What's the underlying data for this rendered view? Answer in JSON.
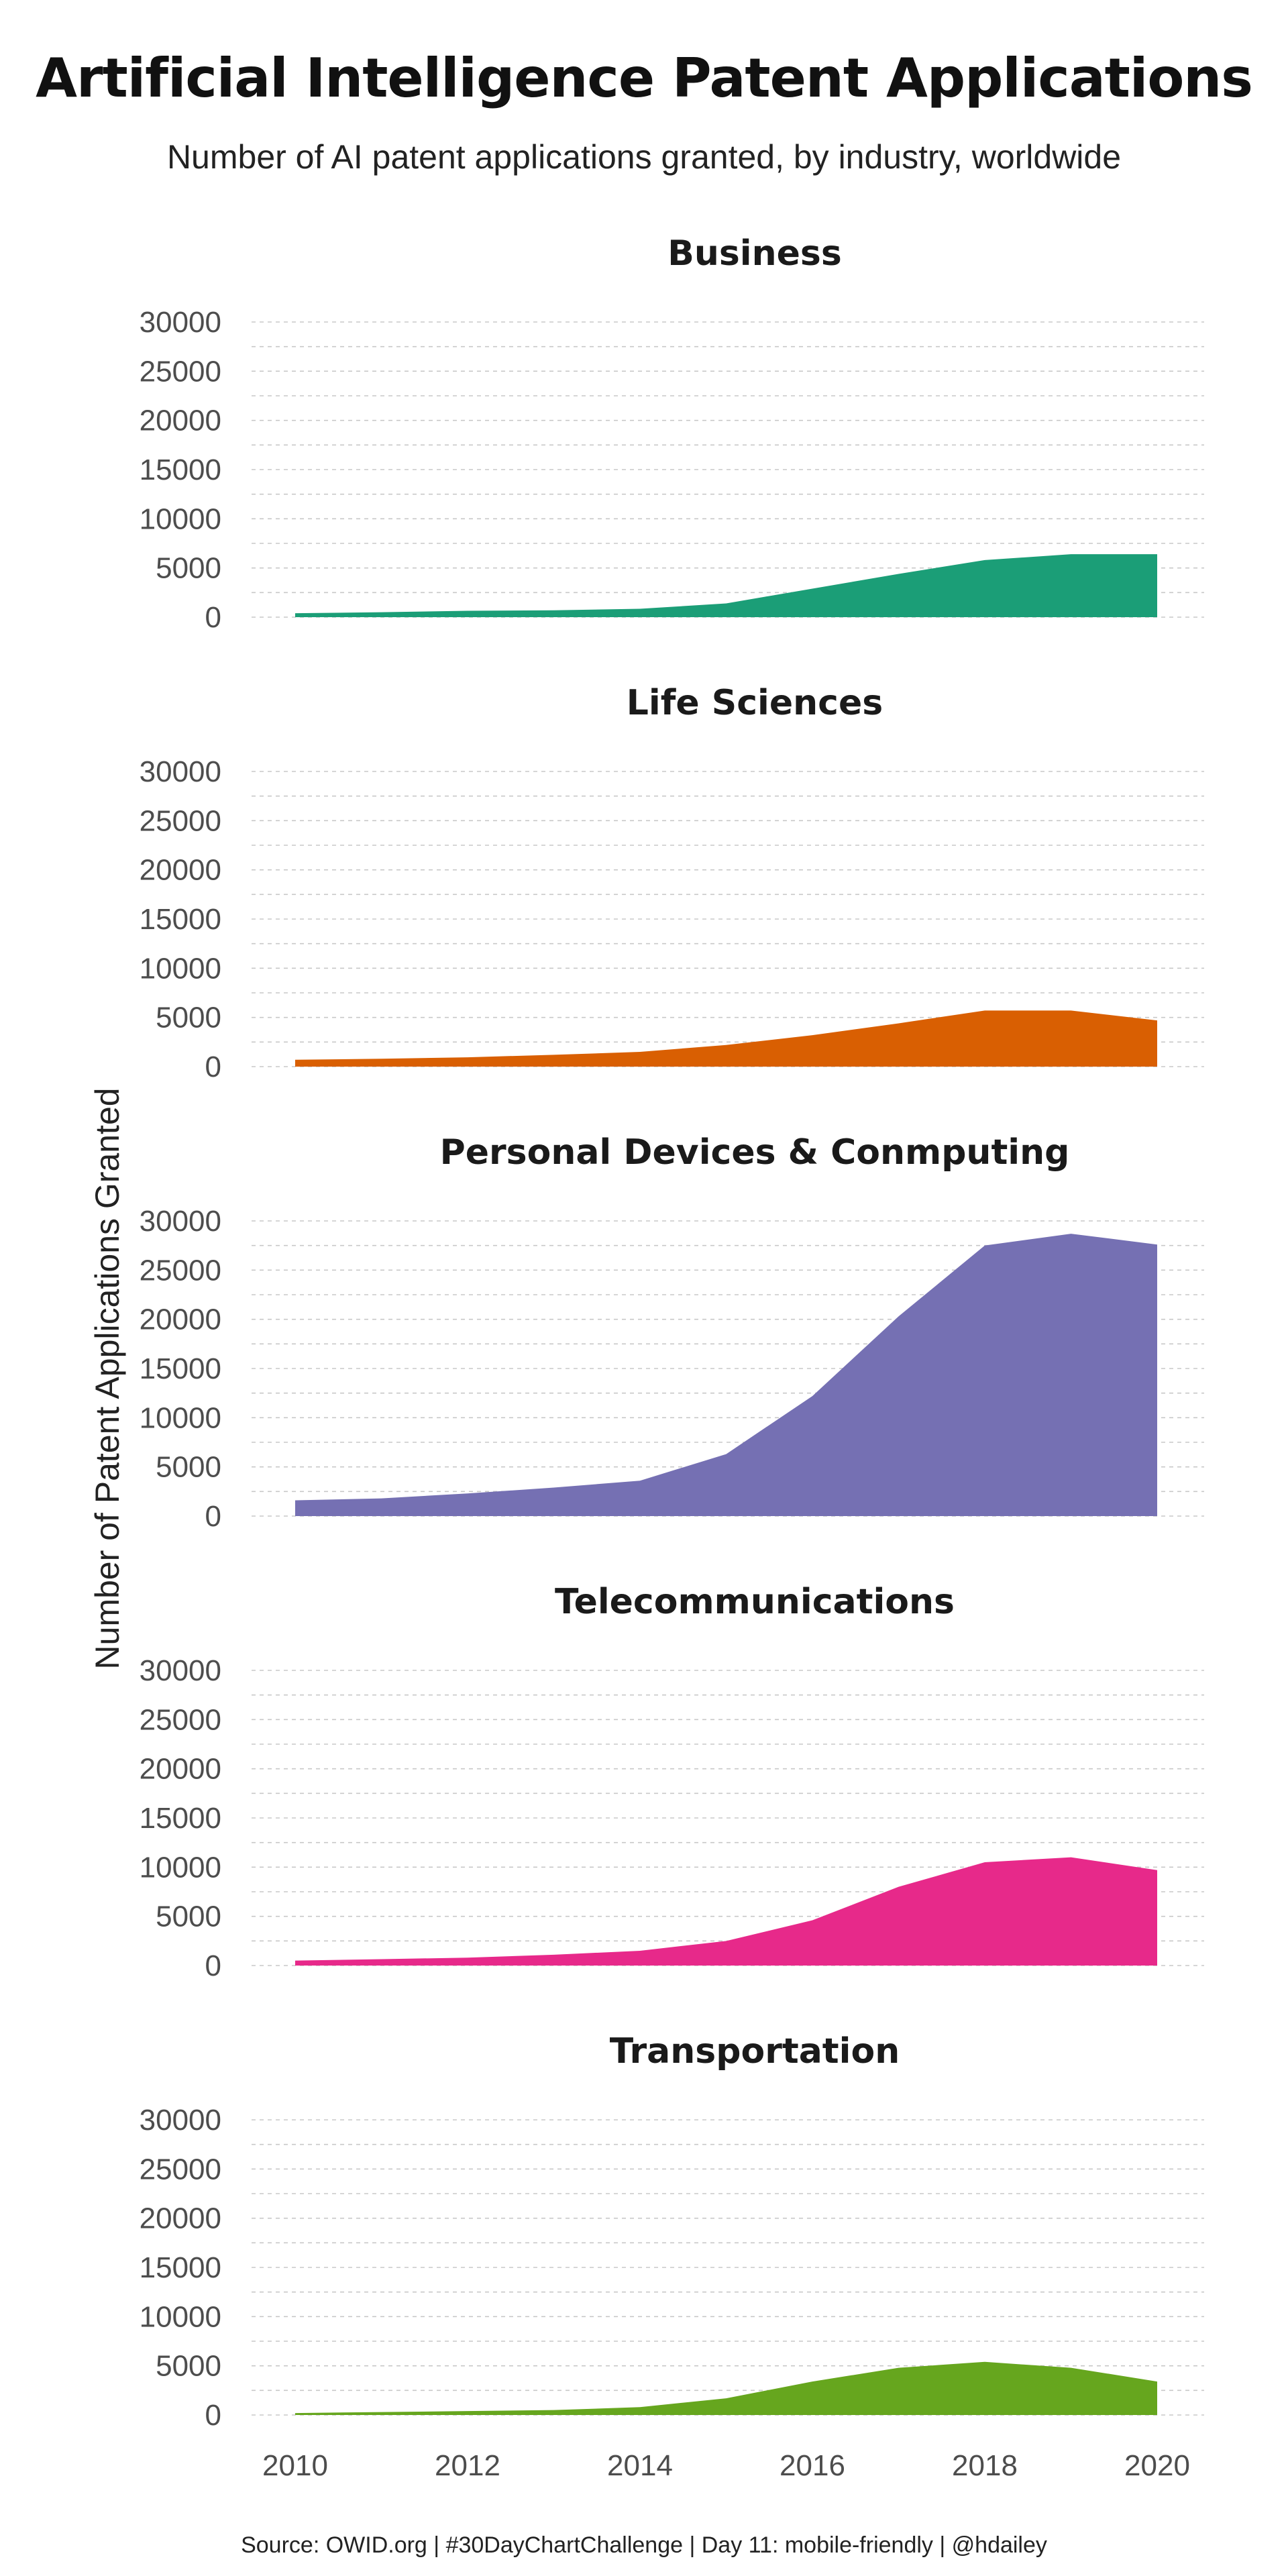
{
  "header": {
    "title": "Artificial Intelligence Patent Applications",
    "subtitle": "Number of AI patent applications granted, by industry, worldwide"
  },
  "footer": {
    "caption": "Source: OWID.org | #30DayChartChallenge | Day 11: mobile-friendly | @hdailey"
  },
  "chart_data": {
    "type": "area",
    "ylabel": "Number of Patent Applications Granted",
    "xlabel": "",
    "x": [
      2010,
      2011,
      2012,
      2013,
      2014,
      2015,
      2016,
      2017,
      2018,
      2019,
      2020
    ],
    "x_ticks": [
      "2010",
      "2012",
      "2014",
      "2016",
      "2018",
      "2020"
    ],
    "x_tick_values": [
      2010,
      2012,
      2014,
      2016,
      2018,
      2020
    ],
    "y_ticks": [
      "30000",
      "25000",
      "20000",
      "15000",
      "10000",
      "5000",
      "0"
    ],
    "y_tick_values": [
      30000,
      25000,
      20000,
      15000,
      10000,
      5000,
      0
    ],
    "ylim": [
      0,
      30000
    ],
    "xlim": [
      2010,
      2020
    ],
    "grid": true,
    "series": [
      {
        "name": "Business",
        "color": "#1b9e77",
        "values": [
          400,
          500,
          650,
          700,
          850,
          1400,
          2900,
          4400,
          5800,
          6400,
          6400
        ]
      },
      {
        "name": "Life Sciences",
        "color": "#d95f02",
        "values": [
          700,
          800,
          950,
          1200,
          1500,
          2200,
          3200,
          4400,
          5700,
          5700,
          4700
        ]
      },
      {
        "name": "Personal Devices & Conmputing",
        "color": "#7570b3",
        "values": [
          1600,
          1800,
          2300,
          2900,
          3600,
          6300,
          12200,
          20300,
          27500,
          28700,
          27600
        ]
      },
      {
        "name": "Telecommunications",
        "color": "#e7298a",
        "values": [
          500,
          650,
          800,
          1100,
          1500,
          2500,
          4600,
          8000,
          10500,
          11000,
          9700
        ]
      },
      {
        "name": "Transportation",
        "color": "#66a61e",
        "values": [
          200,
          300,
          400,
          500,
          800,
          1700,
          3400,
          4800,
          5400,
          4800,
          3400
        ]
      }
    ]
  }
}
